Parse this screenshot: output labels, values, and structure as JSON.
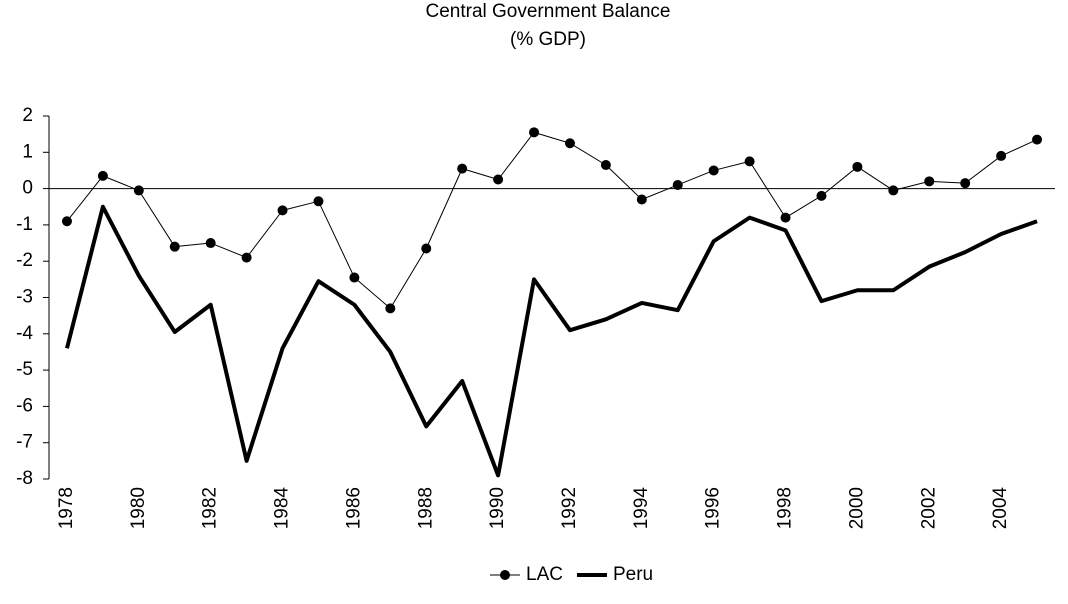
{
  "chart_data": {
    "type": "line",
    "title": "Central Government Balance",
    "subtitle": "(% GDP)",
    "categories": [
      "1978",
      null,
      "1980",
      null,
      "1982",
      null,
      "1984",
      null,
      "1986",
      null,
      "1988",
      null,
      "1990",
      null,
      "1992",
      null,
      "1994",
      null,
      "1996",
      null,
      "1998",
      null,
      "2000",
      null,
      "2002",
      null,
      "2004",
      null
    ],
    "series": [
      {
        "name": "LAC",
        "color": "#000000",
        "marker": "circle",
        "line_width": 1,
        "values": [
          -0.9,
          0.35,
          -0.05,
          -1.6,
          -1.5,
          -1.9,
          -0.6,
          -0.35,
          -2.45,
          -3.3,
          -1.65,
          0.55,
          0.25,
          1.55,
          1.25,
          0.65,
          -0.3,
          0.1,
          0.5,
          0.75,
          -0.8,
          -0.2,
          0.6,
          -0.05,
          0.2,
          0.15,
          0.9,
          1.35
        ]
      },
      {
        "name": "Peru",
        "color": "#000000",
        "line_width": 4,
        "values": [
          -4.4,
          -0.5,
          -2.4,
          -3.95,
          -3.2,
          -7.5,
          -4.4,
          -2.55,
          -3.2,
          -4.5,
          -6.55,
          -5.3,
          -7.9,
          -2.5,
          -3.9,
          -3.6,
          -3.15,
          -3.35,
          -1.45,
          -0.8,
          -1.15,
          -3.1,
          -2.8,
          -2.8,
          -2.15,
          -1.75,
          -1.25,
          -0.9
        ]
      }
    ],
    "ylim": [
      -8,
      2
    ],
    "yticks": [
      -8,
      -7,
      -6,
      -5,
      -4,
      -3,
      -2,
      -1,
      0,
      1,
      2
    ],
    "grid": false,
    "legend": "bottom"
  }
}
